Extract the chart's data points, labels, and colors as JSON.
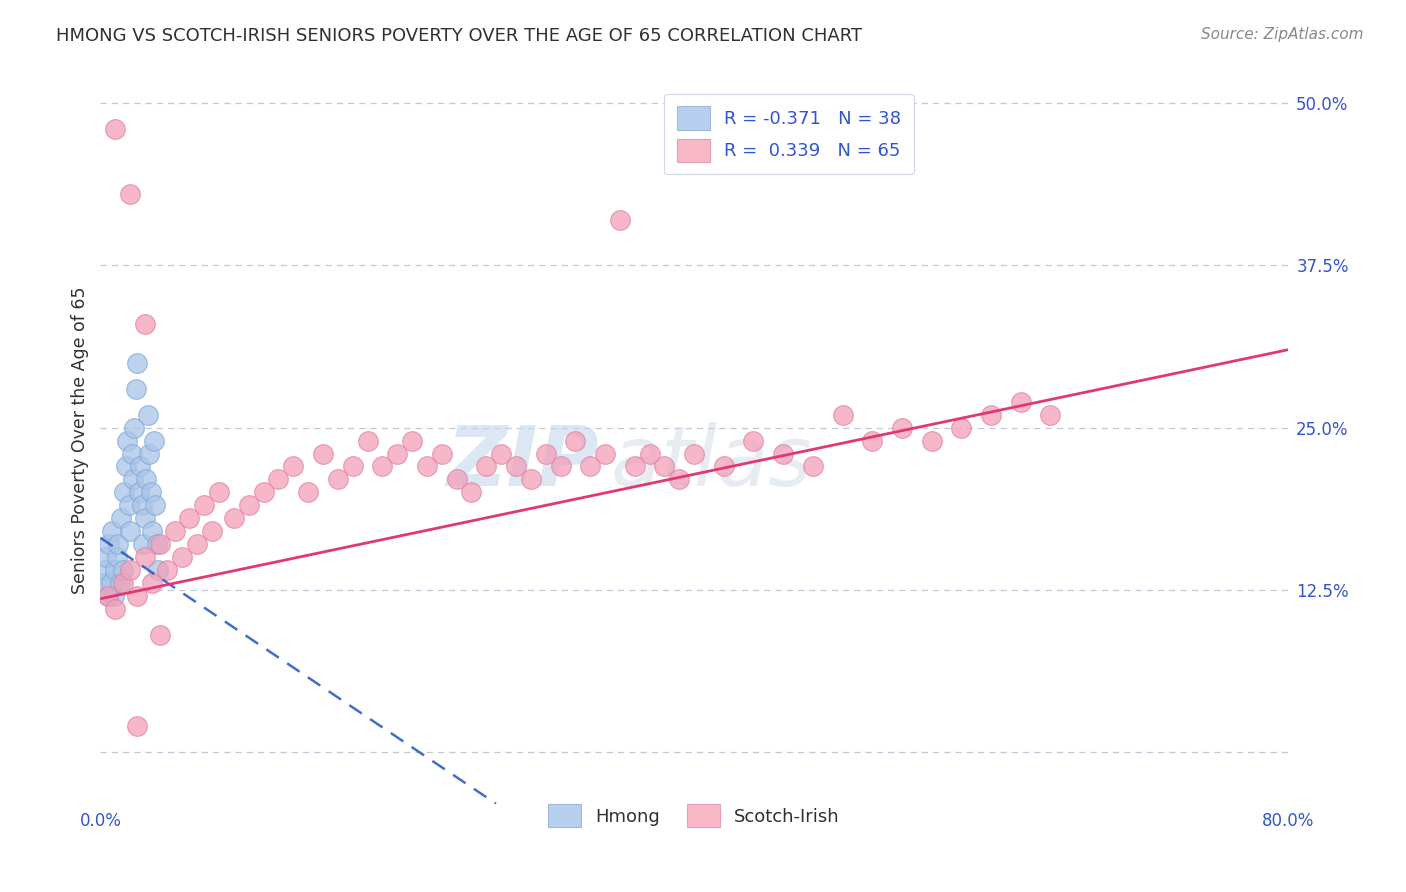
{
  "title": "HMONG VS SCOTCH-IRISH SENIORS POVERTY OVER THE AGE OF 65 CORRELATION CHART",
  "source": "Source: ZipAtlas.com",
  "ylabel": "Seniors Poverty Over the Age of 65",
  "watermark_zip": "ZIP",
  "watermark_atlas": "atlas",
  "xmin": 0.0,
  "xmax": 0.8,
  "ymin": -0.04,
  "ymax": 0.52,
  "y_ticks": [
    0.0,
    0.125,
    0.25,
    0.375,
    0.5
  ],
  "y_tick_labels_right": [
    "",
    "12.5%",
    "25.0%",
    "37.5%",
    "50.0%"
  ],
  "hmong_R": -0.371,
  "hmong_N": 38,
  "scotch_R": 0.339,
  "scotch_N": 65,
  "hmong_color": "#aac4e8",
  "hmong_edge_color": "#7aaad4",
  "hmong_line_color": "#2255bb",
  "scotch_color": "#f4a0b8",
  "scotch_edge_color": "#e080a0",
  "scotch_line_color": "#e03870",
  "legend_box_hmong": "#b8d0f0",
  "legend_box_scotch": "#f8b8c8",
  "title_color": "#303030",
  "axis_label_color": "#303030",
  "tick_color": "#3355cc",
  "grid_color": "#c0c8d8",
  "background_color": "#ffffff",
  "hmong_x": [
    0.002,
    0.003,
    0.004,
    0.005,
    0.006,
    0.007,
    0.008,
    0.009,
    0.01,
    0.011,
    0.012,
    0.013,
    0.014,
    0.015,
    0.016,
    0.017,
    0.018,
    0.019,
    0.02,
    0.021,
    0.022,
    0.023,
    0.024,
    0.025,
    0.026,
    0.027,
    0.028,
    0.029,
    0.03,
    0.031,
    0.032,
    0.033,
    0.034,
    0.035,
    0.036,
    0.037,
    0.038,
    0.039
  ],
  "hmong_y": [
    0.13,
    0.14,
    0.15,
    0.12,
    0.16,
    0.13,
    0.17,
    0.12,
    0.14,
    0.15,
    0.16,
    0.13,
    0.18,
    0.14,
    0.2,
    0.22,
    0.24,
    0.19,
    0.17,
    0.23,
    0.21,
    0.25,
    0.28,
    0.3,
    0.2,
    0.22,
    0.19,
    0.16,
    0.18,
    0.21,
    0.26,
    0.23,
    0.2,
    0.17,
    0.24,
    0.19,
    0.16,
    0.14
  ],
  "scotch_x": [
    0.005,
    0.01,
    0.015,
    0.02,
    0.025,
    0.03,
    0.035,
    0.04,
    0.045,
    0.05,
    0.055,
    0.06,
    0.065,
    0.07,
    0.075,
    0.08,
    0.09,
    0.1,
    0.11,
    0.12,
    0.13,
    0.14,
    0.15,
    0.16,
    0.17,
    0.18,
    0.19,
    0.2,
    0.21,
    0.22,
    0.23,
    0.24,
    0.25,
    0.26,
    0.27,
    0.28,
    0.29,
    0.3,
    0.31,
    0.32,
    0.33,
    0.34,
    0.35,
    0.36,
    0.37,
    0.38,
    0.39,
    0.4,
    0.42,
    0.44,
    0.46,
    0.48,
    0.5,
    0.52,
    0.54,
    0.56,
    0.58,
    0.6,
    0.62,
    0.64,
    0.01,
    0.02,
    0.03,
    0.025,
    0.04
  ],
  "scotch_y": [
    0.12,
    0.11,
    0.13,
    0.14,
    0.12,
    0.15,
    0.13,
    0.16,
    0.14,
    0.17,
    0.15,
    0.18,
    0.16,
    0.19,
    0.17,
    0.2,
    0.18,
    0.19,
    0.2,
    0.21,
    0.22,
    0.2,
    0.23,
    0.21,
    0.22,
    0.24,
    0.22,
    0.23,
    0.24,
    0.22,
    0.23,
    0.21,
    0.2,
    0.22,
    0.23,
    0.22,
    0.21,
    0.23,
    0.22,
    0.24,
    0.22,
    0.23,
    0.41,
    0.22,
    0.23,
    0.22,
    0.21,
    0.23,
    0.22,
    0.24,
    0.23,
    0.22,
    0.26,
    0.24,
    0.25,
    0.24,
    0.25,
    0.26,
    0.27,
    0.26,
    0.48,
    0.43,
    0.33,
    0.02,
    0.09
  ],
  "scotch_line_x0": 0.0,
  "scotch_line_x1": 0.8,
  "scotch_line_y0": 0.118,
  "scotch_line_y1": 0.31,
  "hmong_line_x0": 0.0,
  "hmong_line_x1": 0.065,
  "hmong_line_y0": 0.165,
  "hmong_line_y1": 0.115
}
